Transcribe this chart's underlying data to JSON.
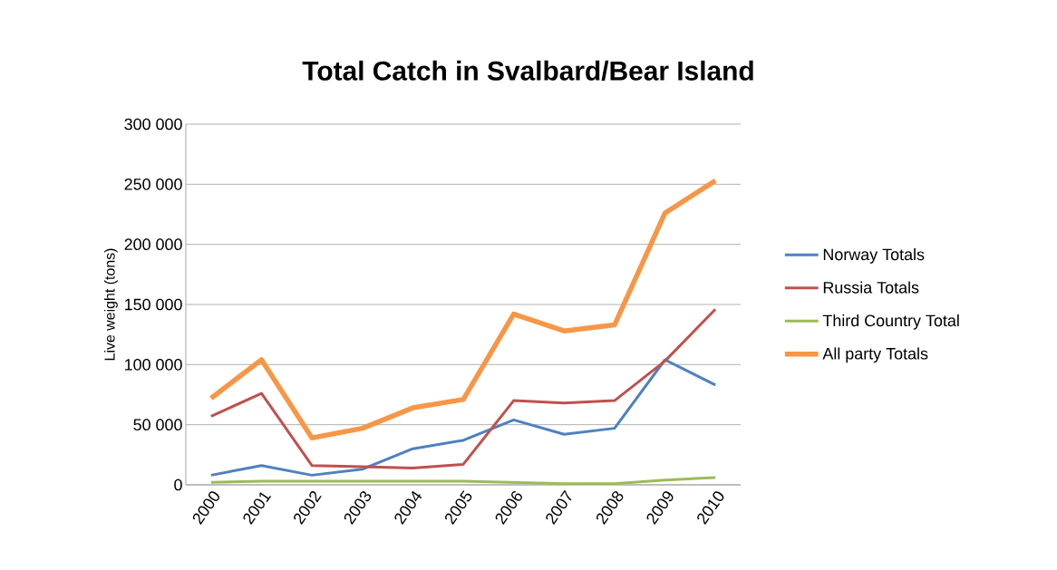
{
  "chart_data": {
    "type": "line",
    "title": "Total Catch in Svalbard/Bear Island",
    "ylabel": "Live weight (tons)",
    "categories": [
      "2000",
      "2001",
      "2002",
      "2003",
      "2004",
      "2005",
      "2006",
      "2007",
      "2008",
      "2009",
      "2010"
    ],
    "series": [
      {
        "name": "Norway Totals",
        "color": "#4f81bd",
        "values": [
          8000,
          16000,
          8000,
          13000,
          30000,
          37000,
          54000,
          42000,
          47000,
          104000,
          83000
        ]
      },
      {
        "name": "Russia Totals",
        "color": "#c0504d",
        "values": [
          57000,
          76000,
          16000,
          15000,
          14000,
          17000,
          70000,
          68000,
          70000,
          103000,
          146000
        ]
      },
      {
        "name": "Third Country Total",
        "color": "#9bbb59",
        "values": [
          2000,
          3000,
          3000,
          3000,
          3000,
          3000,
          2000,
          1000,
          1000,
          4000,
          6000
        ]
      },
      {
        "name": "All party Totals",
        "color": "#f79646",
        "values": [
          72000,
          104000,
          39000,
          47000,
          64000,
          71000,
          142000,
          128000,
          133000,
          226000,
          253000
        ]
      }
    ],
    "ylim": [
      0,
      300000
    ],
    "yticks": [
      {
        "value": 0,
        "label": "0"
      },
      {
        "value": 50000,
        "label": "50 000"
      },
      {
        "value": 100000,
        "label": "100 000"
      },
      {
        "value": 150000,
        "label": "150 000"
      },
      {
        "value": 200000,
        "label": "200 000"
      },
      {
        "value": 250000,
        "label": "250 000"
      },
      {
        "value": 300000,
        "label": "300 000"
      }
    ],
    "grid": "y",
    "legend": "right",
    "marker": "none",
    "line_style": "solid"
  }
}
